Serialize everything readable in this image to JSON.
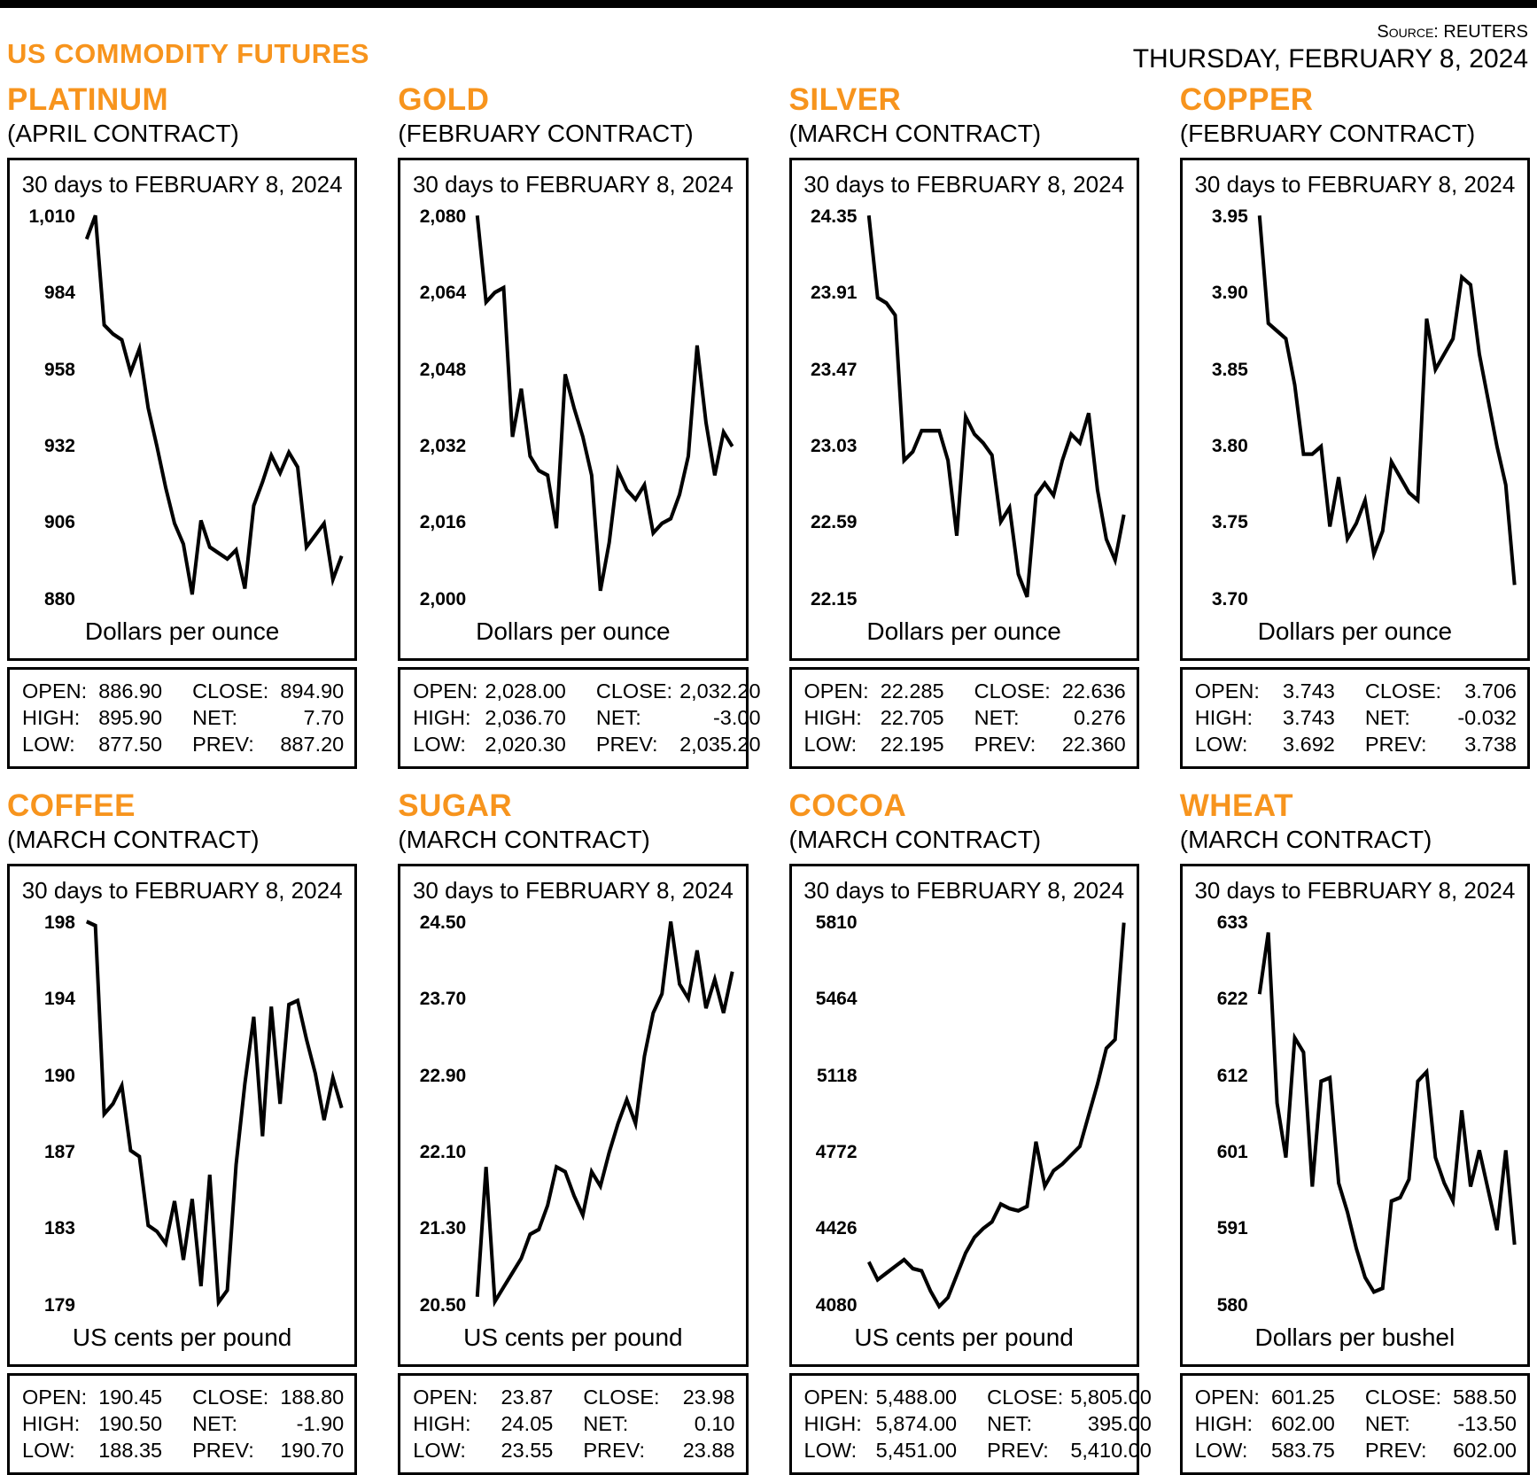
{
  "header": {
    "title": "US COMMODITY FUTURES",
    "source_label": "Source:",
    "source_value": "REUTERS",
    "date": "THURSDAY, FEBRUARY 8, 2024"
  },
  "accent_color": "#F7941D",
  "chart_data": [
    {
      "type": "line",
      "commodity": "PLATINUM",
      "contract": "(APRIL CONTRACT)",
      "title": "30 days to FEBRUARY 8, 2024",
      "unit": "Dollars per ounce",
      "y_ticks": [
        "1,010",
        "984",
        "958",
        "932",
        "906",
        "880"
      ],
      "ylim": [
        880,
        1010
      ],
      "grid": false,
      "values": [
        1002,
        1010,
        973,
        970,
        968,
        957,
        965,
        945,
        932,
        918,
        906,
        899,
        882,
        907,
        898,
        896,
        894,
        897,
        884,
        912,
        920,
        929,
        923,
        930,
        925,
        898,
        902,
        906,
        887,
        895
      ],
      "stats": [
        [
          "OPEN:",
          "886.90",
          "CLOSE:",
          "894.90"
        ],
        [
          "HIGH:",
          "895.90",
          "NET:",
          "7.70"
        ],
        [
          "LOW:",
          "877.50",
          "PREV:",
          "887.20"
        ]
      ]
    },
    {
      "type": "line",
      "commodity": "GOLD",
      "contract": "(FEBRUARY CONTRACT)",
      "title": "30 days to FEBRUARY 8, 2024",
      "unit": "Dollars per ounce",
      "y_ticks": [
        "2,080",
        "2,064",
        "2,048",
        "2,032",
        "2,016",
        "2,000"
      ],
      "ylim": [
        2000,
        2080
      ],
      "grid": false,
      "values": [
        2080,
        2062,
        2064,
        2065,
        2034,
        2044,
        2030,
        2027,
        2026,
        2015,
        2047,
        2040,
        2034,
        2026,
        2002,
        2012,
        2027,
        2023,
        2021,
        2024,
        2014,
        2016,
        2017,
        2022,
        2030,
        2053,
        2037,
        2026,
        2035,
        2032
      ],
      "stats": [
        [
          "OPEN:",
          "2,028.00",
          "CLOSE:",
          "2,032.20"
        ],
        [
          "HIGH:",
          "2,036.70",
          "NET:",
          "-3.00"
        ],
        [
          "LOW:",
          "2,020.30",
          "PREV:",
          "2,035.20"
        ]
      ]
    },
    {
      "type": "line",
      "commodity": "SILVER",
      "contract": "(MARCH CONTRACT)",
      "title": "30 days to FEBRUARY 8, 2024",
      "unit": "Dollars per ounce",
      "y_ticks": [
        "24.35",
        "23.91",
        "23.47",
        "23.03",
        "22.59",
        "22.15"
      ],
      "ylim": [
        22.15,
        24.35
      ],
      "grid": false,
      "values": [
        24.35,
        23.88,
        23.85,
        23.78,
        22.95,
        23.0,
        23.12,
        23.12,
        23.12,
        22.95,
        22.52,
        23.2,
        23.1,
        23.05,
        22.98,
        22.6,
        22.68,
        22.3,
        22.17,
        22.75,
        22.82,
        22.75,
        22.95,
        23.1,
        23.05,
        23.22,
        22.78,
        22.5,
        22.38,
        22.64
      ],
      "stats": [
        [
          "OPEN:",
          "22.285",
          "CLOSE:",
          "22.636"
        ],
        [
          "HIGH:",
          "22.705",
          "NET:",
          "0.276"
        ],
        [
          "LOW:",
          "22.195",
          "PREV:",
          "22.360"
        ]
      ]
    },
    {
      "type": "line",
      "commodity": "COPPER",
      "contract": "(FEBRUARY CONTRACT)",
      "title": "30 days to FEBRUARY 8, 2024",
      "unit": "Dollars per ounce",
      "y_ticks": [
        "3.95",
        "3.90",
        "3.85",
        "3.80",
        "3.75",
        "3.70"
      ],
      "ylim": [
        3.7,
        3.95
      ],
      "grid": false,
      "values": [
        3.95,
        3.88,
        3.875,
        3.87,
        3.84,
        3.795,
        3.795,
        3.8,
        3.748,
        3.78,
        3.74,
        3.75,
        3.765,
        3.73,
        3.745,
        3.79,
        3.78,
        3.77,
        3.765,
        3.883,
        3.85,
        3.86,
        3.87,
        3.91,
        3.905,
        3.86,
        3.83,
        3.8,
        3.775,
        3.71
      ],
      "stats": [
        [
          "OPEN:",
          "3.743",
          "CLOSE:",
          "3.706"
        ],
        [
          "HIGH:",
          "3.743",
          "NET:",
          "-0.032"
        ],
        [
          "LOW:",
          "3.692",
          "PREV:",
          "3.738"
        ]
      ]
    },
    {
      "type": "line",
      "commodity": "COFFEE",
      "contract": "(MARCH CONTRACT)",
      "title": "30 days to FEBRUARY 8, 2024",
      "unit": "US cents per pound",
      "y_ticks": [
        "198",
        "194",
        "190",
        "187",
        "183",
        "179"
      ],
      "ylim": [
        179,
        198
      ],
      "grid": false,
      "values": [
        198,
        197.8,
        188.5,
        189,
        189.9,
        186.7,
        186.4,
        183,
        182.7,
        182.1,
        184.2,
        181.3,
        184.3,
        180,
        185.5,
        179.2,
        179.8,
        186,
        190,
        193.3,
        187.4,
        193.8,
        189,
        193.9,
        194.1,
        192.2,
        190.5,
        188.2,
        190.3,
        188.8
      ],
      "stats": [
        [
          "OPEN:",
          "190.45",
          "CLOSE:",
          "188.80"
        ],
        [
          "HIGH:",
          "190.50",
          "NET:",
          "-1.90"
        ],
        [
          "LOW:",
          "188.35",
          "PREV:",
          "190.70"
        ]
      ]
    },
    {
      "type": "line",
      "commodity": "SUGAR",
      "contract": "(MARCH CONTRACT)",
      "title": "30 days to FEBRUARY 8, 2024",
      "unit": "US cents per pound",
      "y_ticks": [
        "24.50",
        "23.70",
        "22.90",
        "22.10",
        "21.30",
        "20.50"
      ],
      "ylim": [
        20.5,
        24.5
      ],
      "grid": false,
      "values": [
        20.6,
        21.95,
        20.55,
        20.7,
        20.85,
        21.0,
        21.25,
        21.3,
        21.55,
        21.95,
        21.9,
        21.65,
        21.45,
        21.9,
        21.75,
        22.1,
        22.4,
        22.65,
        22.4,
        23.1,
        23.55,
        23.75,
        24.5,
        23.85,
        23.7,
        24.2,
        23.6,
        23.9,
        23.55,
        23.98
      ],
      "stats": [
        [
          "OPEN:",
          "23.87",
          "CLOSE:",
          "23.98"
        ],
        [
          "HIGH:",
          "24.05",
          "NET:",
          "0.10"
        ],
        [
          "LOW:",
          "23.55",
          "PREV:",
          "23.88"
        ]
      ]
    },
    {
      "type": "line",
      "commodity": "COCOA",
      "contract": "(MARCH CONTRACT)",
      "title": "30 days to FEBRUARY 8, 2024",
      "unit": "US cents per pound",
      "y_ticks": [
        "5810",
        "5464",
        "5118",
        "4772",
        "4426",
        "4080"
      ],
      "ylim": [
        4080,
        5810
      ],
      "grid": false,
      "values": [
        4280,
        4200,
        4230,
        4260,
        4290,
        4250,
        4240,
        4150,
        4080,
        4120,
        4220,
        4320,
        4390,
        4430,
        4460,
        4540,
        4520,
        4510,
        4530,
        4820,
        4620,
        4690,
        4720,
        4760,
        4800,
        4940,
        5080,
        5240,
        5280,
        5805
      ],
      "stats": [
        [
          "OPEN:",
          "5,488.00",
          "CLOSE:",
          "5,805.00"
        ],
        [
          "HIGH:",
          "5,874.00",
          "NET:",
          "395.00"
        ],
        [
          "LOW:",
          "5,451.00",
          "PREV:",
          "5,410.00"
        ]
      ]
    },
    {
      "type": "line",
      "commodity": "WHEAT",
      "contract": "(MARCH CONTRACT)",
      "title": "30 days to FEBRUARY 8, 2024",
      "unit": "Dollars per bushel",
      "y_ticks": [
        "633",
        "622",
        "612",
        "601",
        "591",
        "580"
      ],
      "ylim": [
        580,
        633
      ],
      "grid": false,
      "values": [
        623,
        631.5,
        608,
        600.5,
        617,
        615,
        596.5,
        611,
        611.5,
        597,
        593,
        588,
        584,
        582,
        582.5,
        594.5,
        595,
        597.5,
        611,
        612.3,
        600.5,
        597,
        594.5,
        607,
        596.5,
        601.5,
        596,
        590.5,
        601.5,
        588.5
      ],
      "stats": [
        [
          "OPEN:",
          "601.25",
          "CLOSE:",
          "588.50"
        ],
        [
          "HIGH:",
          "602.00",
          "NET:",
          "-13.50"
        ],
        [
          "LOW:",
          "583.75",
          "PREV:",
          "602.00"
        ]
      ]
    }
  ]
}
